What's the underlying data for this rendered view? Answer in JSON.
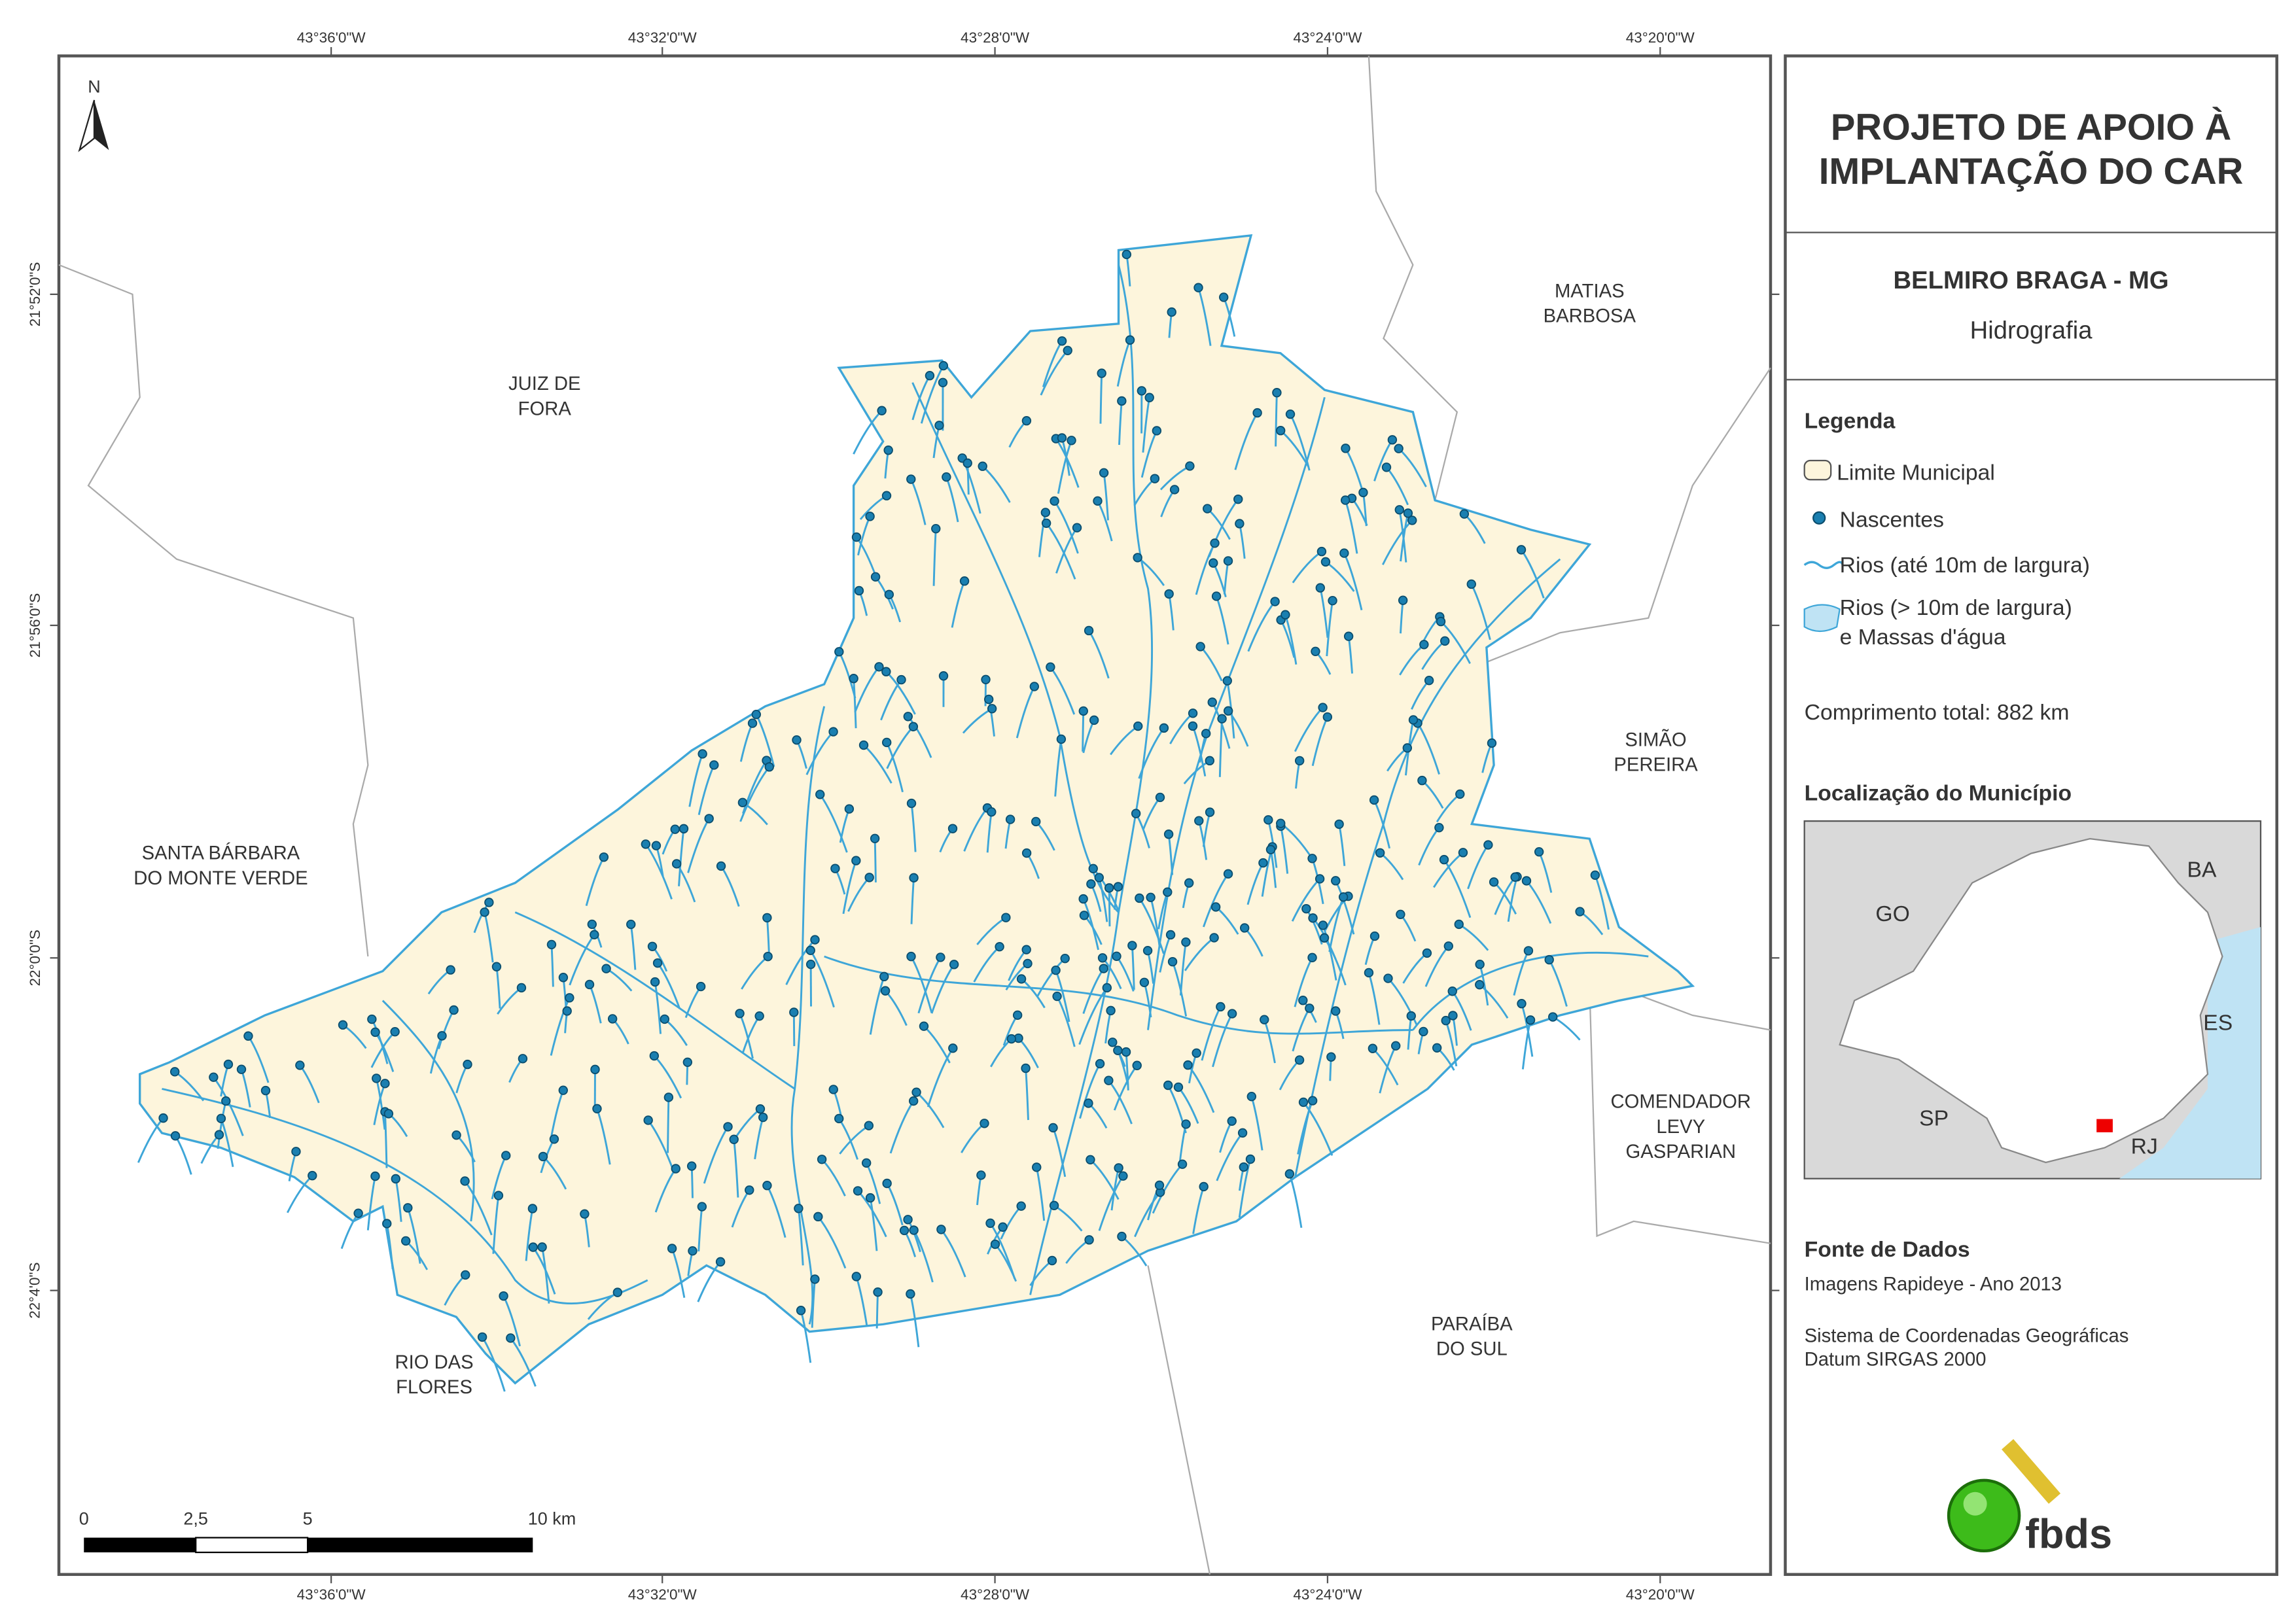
{
  "header": {
    "title_lines": [
      "PROJETO DE APOIO À",
      "IMPLANTAÇÃO DO CAR"
    ],
    "municipality": "BELMIRO BRAGA - MG",
    "theme": "Hidrografia"
  },
  "legend": {
    "title": "Legenda",
    "items": [
      "Limite Municipal",
      "Nascentes",
      "Rios (até 10m de largura)",
      "Rios (> 10m de largura)",
      "e Massas d'água"
    ],
    "total_length": "Comprimento total:  882 km"
  },
  "location": {
    "title": "Localização do Município",
    "labels": [
      "GO",
      "BA",
      "ES",
      "SP",
      "RJ"
    ]
  },
  "source": {
    "title": "Fonte de Dados",
    "lines": [
      "Imagens Rapideye - Ano 2013",
      "Sistema de Coordenadas Geográficas",
      "Datum SIRGAS 2000"
    ]
  },
  "logo": "fbds",
  "map": {
    "north": "N",
    "neighbors": [
      [
        "JUIZ DE",
        "FORA"
      ],
      [
        "MATIAS",
        "BARBOSA"
      ],
      [
        "SIMÃO",
        "PEREIRA"
      ],
      [
        "SANTA BÁRBARA",
        "DO MONTE VERDE"
      ],
      [
        "COMENDADOR",
        "LEVY",
        "GASPARIAN"
      ],
      [
        "PARAÍBA",
        "DO SUL"
      ],
      [
        "RIO DAS",
        "FLORES"
      ]
    ],
    "longitude_labels": [
      "43°36'0\"W",
      "43°32'0\"W",
      "43°28'0\"W",
      "43°24'0\"W",
      "43°20'0\"W"
    ],
    "latitude_labels": [
      "21°52'0\"S",
      "21°56'0\"S",
      "22°0'0\"S",
      "22°4'0\"S"
    ],
    "scale_labels": [
      "0",
      "2,5",
      "5",
      "10 km"
    ]
  }
}
